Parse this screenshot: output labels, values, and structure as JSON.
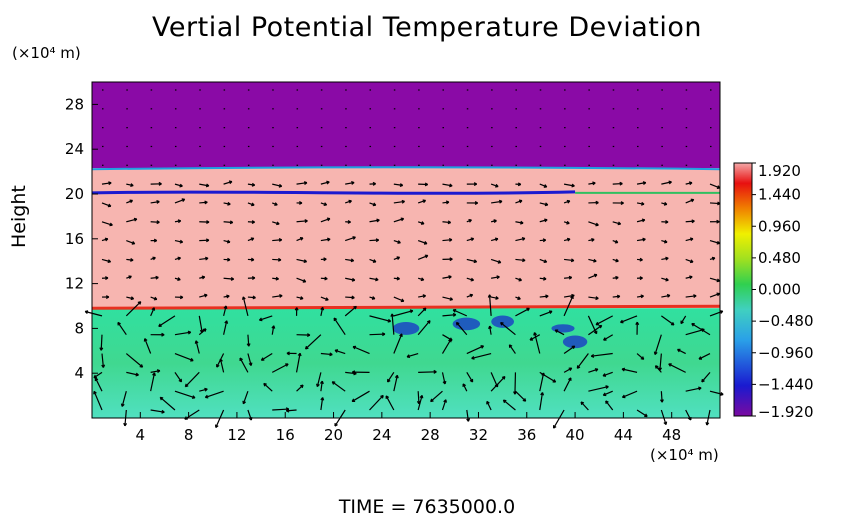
{
  "chart_data": {
    "type": "heatmap",
    "title": "Vertial Potential Temperature Deviation",
    "ylabel": "Height",
    "y_unit": "(×10⁴ m)",
    "x_unit": "(×10⁴ m)",
    "xlim": [
      0,
      52
    ],
    "ylim": [
      0,
      30
    ],
    "x_ticks": [
      "4",
      "8",
      "12",
      "16",
      "20",
      "24",
      "28",
      "32",
      "36",
      "40",
      "44",
      "48"
    ],
    "x_tick_values": [
      4,
      8,
      12,
      16,
      20,
      24,
      28,
      32,
      36,
      40,
      44,
      48
    ],
    "y_ticks": [
      "4",
      "8",
      "12",
      "16",
      "20",
      "24",
      "28"
    ],
    "y_tick_values": [
      4,
      8,
      12,
      16,
      20,
      24,
      28
    ],
    "colorbar": {
      "min": -1.92,
      "max": 1.92,
      "ticks": [
        "1.920",
        "1.440",
        "0.960",
        "0.480",
        "0.000",
        "−0.480",
        "−0.960",
        "−1.440",
        "−1.920"
      ],
      "tick_values": [
        1.92,
        1.44,
        0.96,
        0.48,
        0.0,
        -0.48,
        -0.96,
        -1.44,
        -1.92
      ]
    },
    "regions": [
      {
        "y_range": [
          22.3,
          30
        ],
        "value": -1.92
      },
      {
        "y_range": [
          9.8,
          22.3
        ],
        "value": 1.92
      },
      {
        "y_range": [
          0,
          9.8
        ],
        "value": -0.2
      }
    ],
    "overlay": "wind vector arrows"
  },
  "time_label": "TIME = 7635000.0"
}
